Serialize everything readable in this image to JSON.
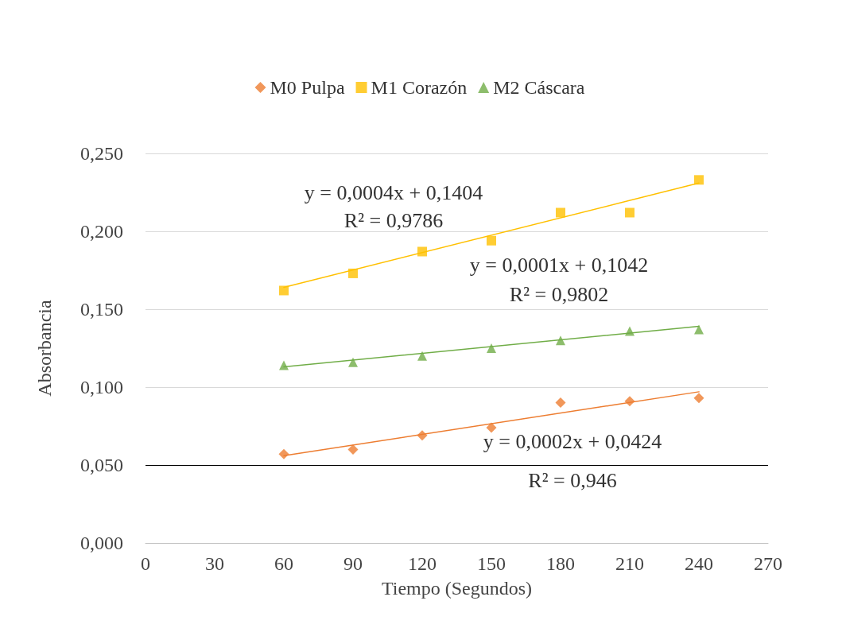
{
  "chart_data": {
    "type": "scatter",
    "xlabel": "Tiempo (Segundos)",
    "ylabel": "Absorbancia",
    "series": [
      {
        "name": "M0 Pulpa",
        "color": "#ed7d31",
        "marker": "diamond",
        "x": [
          60,
          90,
          120,
          150,
          180,
          210,
          240
        ],
        "values": [
          0.057,
          0.06,
          0.069,
          0.074,
          0.09,
          0.091,
          0.093
        ]
      },
      {
        "name": "M1 Corazón",
        "color": "#ffc000",
        "marker": "square",
        "x": [
          60,
          90,
          120,
          150,
          180,
          210,
          240
        ],
        "values": [
          0.162,
          0.173,
          0.187,
          0.194,
          0.212,
          0.212,
          0.233
        ]
      },
      {
        "name": "M2 Cáscara",
        "color": "#70ad47",
        "marker": "triangle",
        "x": [
          60,
          90,
          120,
          150,
          180,
          210,
          240
        ],
        "values": [
          0.114,
          0.116,
          0.12,
          0.125,
          0.13,
          0.136,
          0.137
        ]
      },
      {
        "type": "line",
        "color": "#ed7d31",
        "marker": "none",
        "x": [
          60,
          240
        ],
        "values": [
          0.056,
          0.097
        ]
      },
      {
        "type": "line",
        "color": "#ffc000",
        "marker": "none",
        "x": [
          60,
          240
        ],
        "values": [
          0.164,
          0.231
        ]
      },
      {
        "type": "line",
        "color": "#70ad47",
        "marker": "none",
        "x": [
          60,
          240
        ],
        "values": [
          0.113,
          0.139
        ]
      }
    ],
    "xlim": [
      0,
      270
    ],
    "xticks": [
      0,
      30,
      60,
      90,
      120,
      150,
      180,
      210,
      240,
      270
    ],
    "ylim": [
      0,
      0.25
    ],
    "yticks": [
      {
        "value": 0,
        "label": "0,000"
      },
      {
        "value": 0.05,
        "label": "0,050"
      },
      {
        "value": 0.1,
        "label": "0,100"
      },
      {
        "value": 0.15,
        "label": "0,150"
      },
      {
        "value": 0.2,
        "label": "0,200"
      },
      {
        "value": 0.25,
        "label": "0,250"
      }
    ],
    "grid": "y",
    "legend": "top",
    "ref_lines": [
      {
        "axis": "y",
        "value": 0.05,
        "color": "#000000"
      }
    ],
    "annotations": [
      "y = 0,0004x + 0,1404",
      "R² = 0,9786",
      "y = 0,0001x + 0,1042",
      "R² = 0,9802",
      "y = 0,0002x + 0,0424",
      "R² = 0,946"
    ]
  }
}
